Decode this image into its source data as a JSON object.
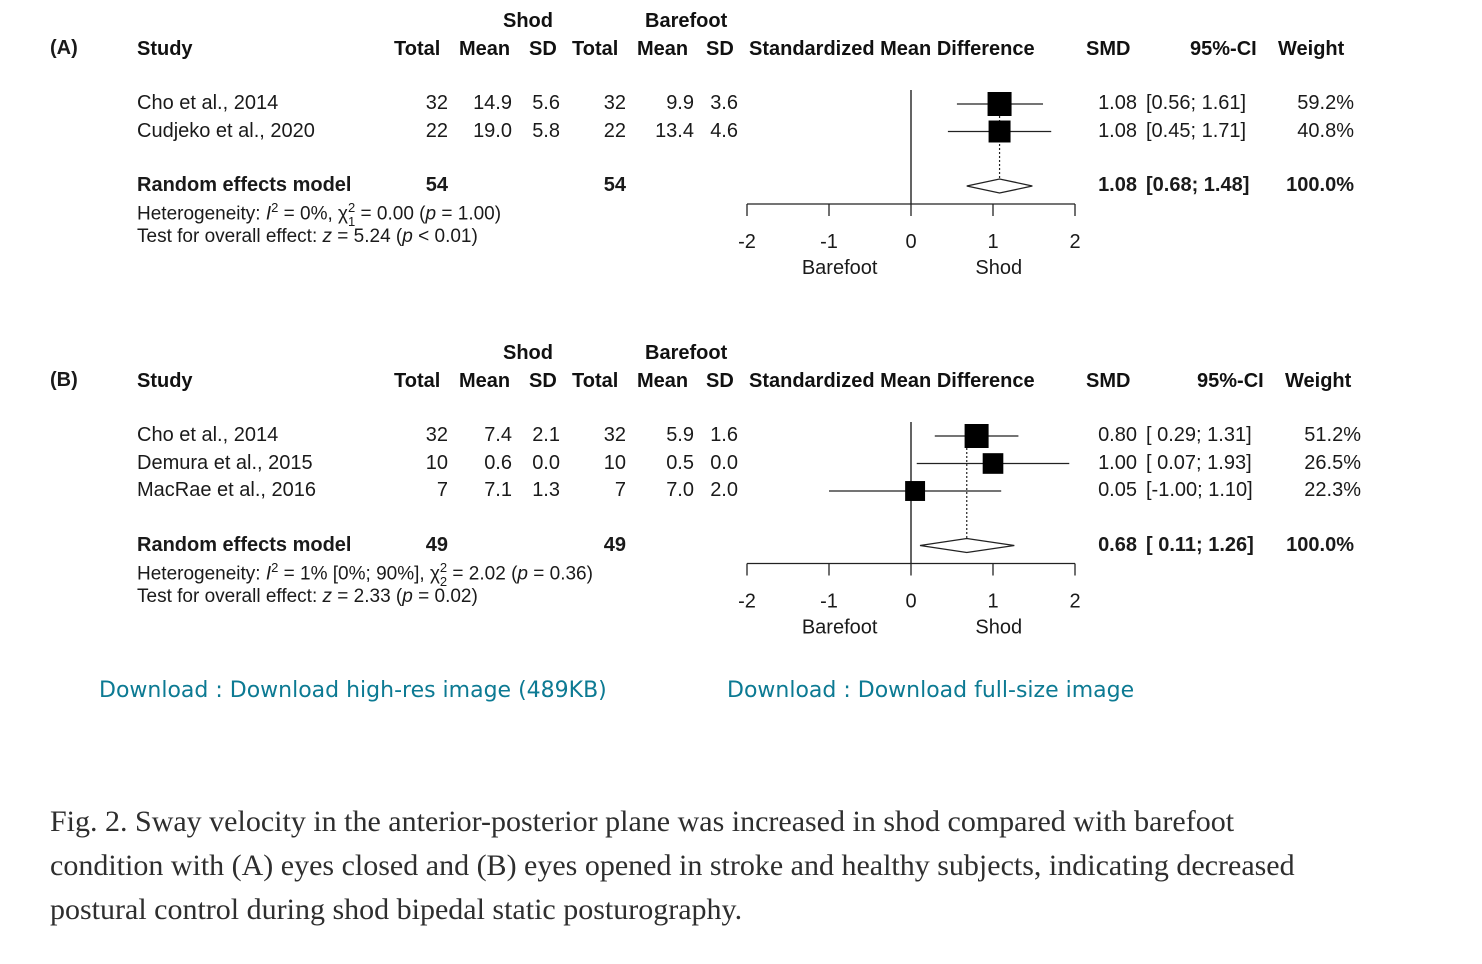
{
  "figure": {
    "caption": "Fig. 2. Sway velocity in the anterior-posterior plane was increased in shod compared with barefoot condition with (A) eyes closed and (B) eyes opened in stroke and healthy subjects, indicating decreased postural control during shod bipedal static posturography.",
    "links": {
      "high_res": "Download : Download high-res image (489KB)",
      "full_size": "Download : Download full-size image"
    }
  },
  "header_labels": {
    "group_shod": "Shod",
    "group_barefoot": "Barefoot",
    "study": "Study",
    "total": "Total",
    "mean": "Mean",
    "sd": "SD",
    "smd_plot": "Standardized Mean Difference",
    "smd": "SMD",
    "ci": "95%-CI",
    "weight": "Weight"
  },
  "chart_data": [
    {
      "type": "forest",
      "panel_label": "(A)",
      "xlim": [
        -2,
        2
      ],
      "x_ticks": [
        "-2",
        "-1",
        "0",
        "1",
        "2"
      ],
      "x_tick_values": [
        -2,
        -1,
        0,
        1,
        2
      ],
      "x_side_labels": {
        "left": "Barefoot",
        "right": "Shod"
      },
      "studies": [
        {
          "name": "Cho et al., 2014",
          "shod_total": "32",
          "shod_mean": "14.9",
          "shod_sd": "5.6",
          "bf_total": "32",
          "bf_mean": "9.9",
          "bf_sd": "3.6",
          "smd": 1.08,
          "ci_low": 0.56,
          "ci_high": 1.61,
          "smd_text": "1.08",
          "ci_text": "[0.56; 1.61]",
          "weight": 59.2,
          "weight_text": "59.2%"
        },
        {
          "name": "Cudjeko et al., 2020",
          "shod_total": "22",
          "shod_mean": "19.0",
          "shod_sd": "5.8",
          "bf_total": "22",
          "bf_mean": "13.4",
          "bf_sd": "4.6",
          "smd": 1.08,
          "ci_low": 0.45,
          "ci_high": 1.71,
          "smd_text": "1.08",
          "ci_text": "[0.45; 1.71]",
          "weight": 40.8,
          "weight_text": "40.8%"
        }
      ],
      "pooled": {
        "label": "Random effects model",
        "shod_total": "54",
        "bf_total": "54",
        "smd": 1.08,
        "ci_low": 0.68,
        "ci_high": 1.48,
        "smd_text": "1.08",
        "ci_text": "[0.68; 1.48]",
        "weight_text": "100.0%"
      },
      "heterogeneity": {
        "prefix": "Heterogeneity: ",
        "i2": "I",
        "i2_rest": " = 0%, ",
        "chi": "χ",
        "chi_sub": "1",
        "chi_rest": " = 0.00 (",
        "p": "p",
        "p_rest": " = 1.00)"
      },
      "overall_test": {
        "prefix": "Test for overall effect: ",
        "z": "z",
        "z_rest": " = 5.24 (",
        "p": "p",
        "p_rest": " < 0.01)"
      }
    },
    {
      "type": "forest",
      "panel_label": "(B)",
      "xlim": [
        -2,
        2
      ],
      "x_ticks": [
        "-2",
        "-1",
        "0",
        "1",
        "2"
      ],
      "x_tick_values": [
        -2,
        -1,
        0,
        1,
        2
      ],
      "x_side_labels": {
        "left": "Barefoot",
        "right": "Shod"
      },
      "studies": [
        {
          "name": "Cho et al., 2014",
          "shod_total": "32",
          "shod_mean": "7.4",
          "shod_sd": "2.1",
          "bf_total": "32",
          "bf_mean": "5.9",
          "bf_sd": "1.6",
          "smd": 0.8,
          "ci_low": 0.29,
          "ci_high": 1.31,
          "smd_text": "0.80",
          "ci_text": "[ 0.29; 1.31]",
          "weight": 51.2,
          "weight_text": "51.2%"
        },
        {
          "name": "Demura et al., 2015",
          "shod_total": "10",
          "shod_mean": "0.6",
          "shod_sd": "0.0",
          "bf_total": "10",
          "bf_mean": "0.5",
          "bf_sd": "0.0",
          "smd": 1.0,
          "ci_low": 0.07,
          "ci_high": 1.93,
          "smd_text": "1.00",
          "ci_text": "[ 0.07; 1.93]",
          "weight": 26.5,
          "weight_text": "26.5%"
        },
        {
          "name": "MacRae et al., 2016",
          "shod_total": "7",
          "shod_mean": "7.1",
          "shod_sd": "1.3",
          "bf_total": "7",
          "bf_mean": "7.0",
          "bf_sd": "2.0",
          "smd": 0.05,
          "ci_low": -1.0,
          "ci_high": 1.1,
          "smd_text": "0.05",
          "ci_text": "[-1.00; 1.10]",
          "weight": 22.3,
          "weight_text": "22.3%"
        }
      ],
      "pooled": {
        "label": "Random effects model",
        "shod_total": "49",
        "bf_total": "49",
        "smd": 0.68,
        "ci_low": 0.11,
        "ci_high": 1.26,
        "smd_text": "0.68",
        "ci_text": "[ 0.11; 1.26]",
        "weight_text": "100.0%"
      },
      "heterogeneity": {
        "prefix": "Heterogeneity: ",
        "i2": "I",
        "i2_rest": " = 1% [0%; 90%], ",
        "chi": "χ",
        "chi_sub": "2",
        "chi_rest": " = 2.02 (",
        "p": "p",
        "p_rest": " = 0.36)"
      },
      "overall_test": {
        "prefix": "Test for overall effect: ",
        "z": "z",
        "z_rest": " = 2.33 (",
        "p": "p",
        "p_rest": " = 0.02)"
      }
    }
  ]
}
